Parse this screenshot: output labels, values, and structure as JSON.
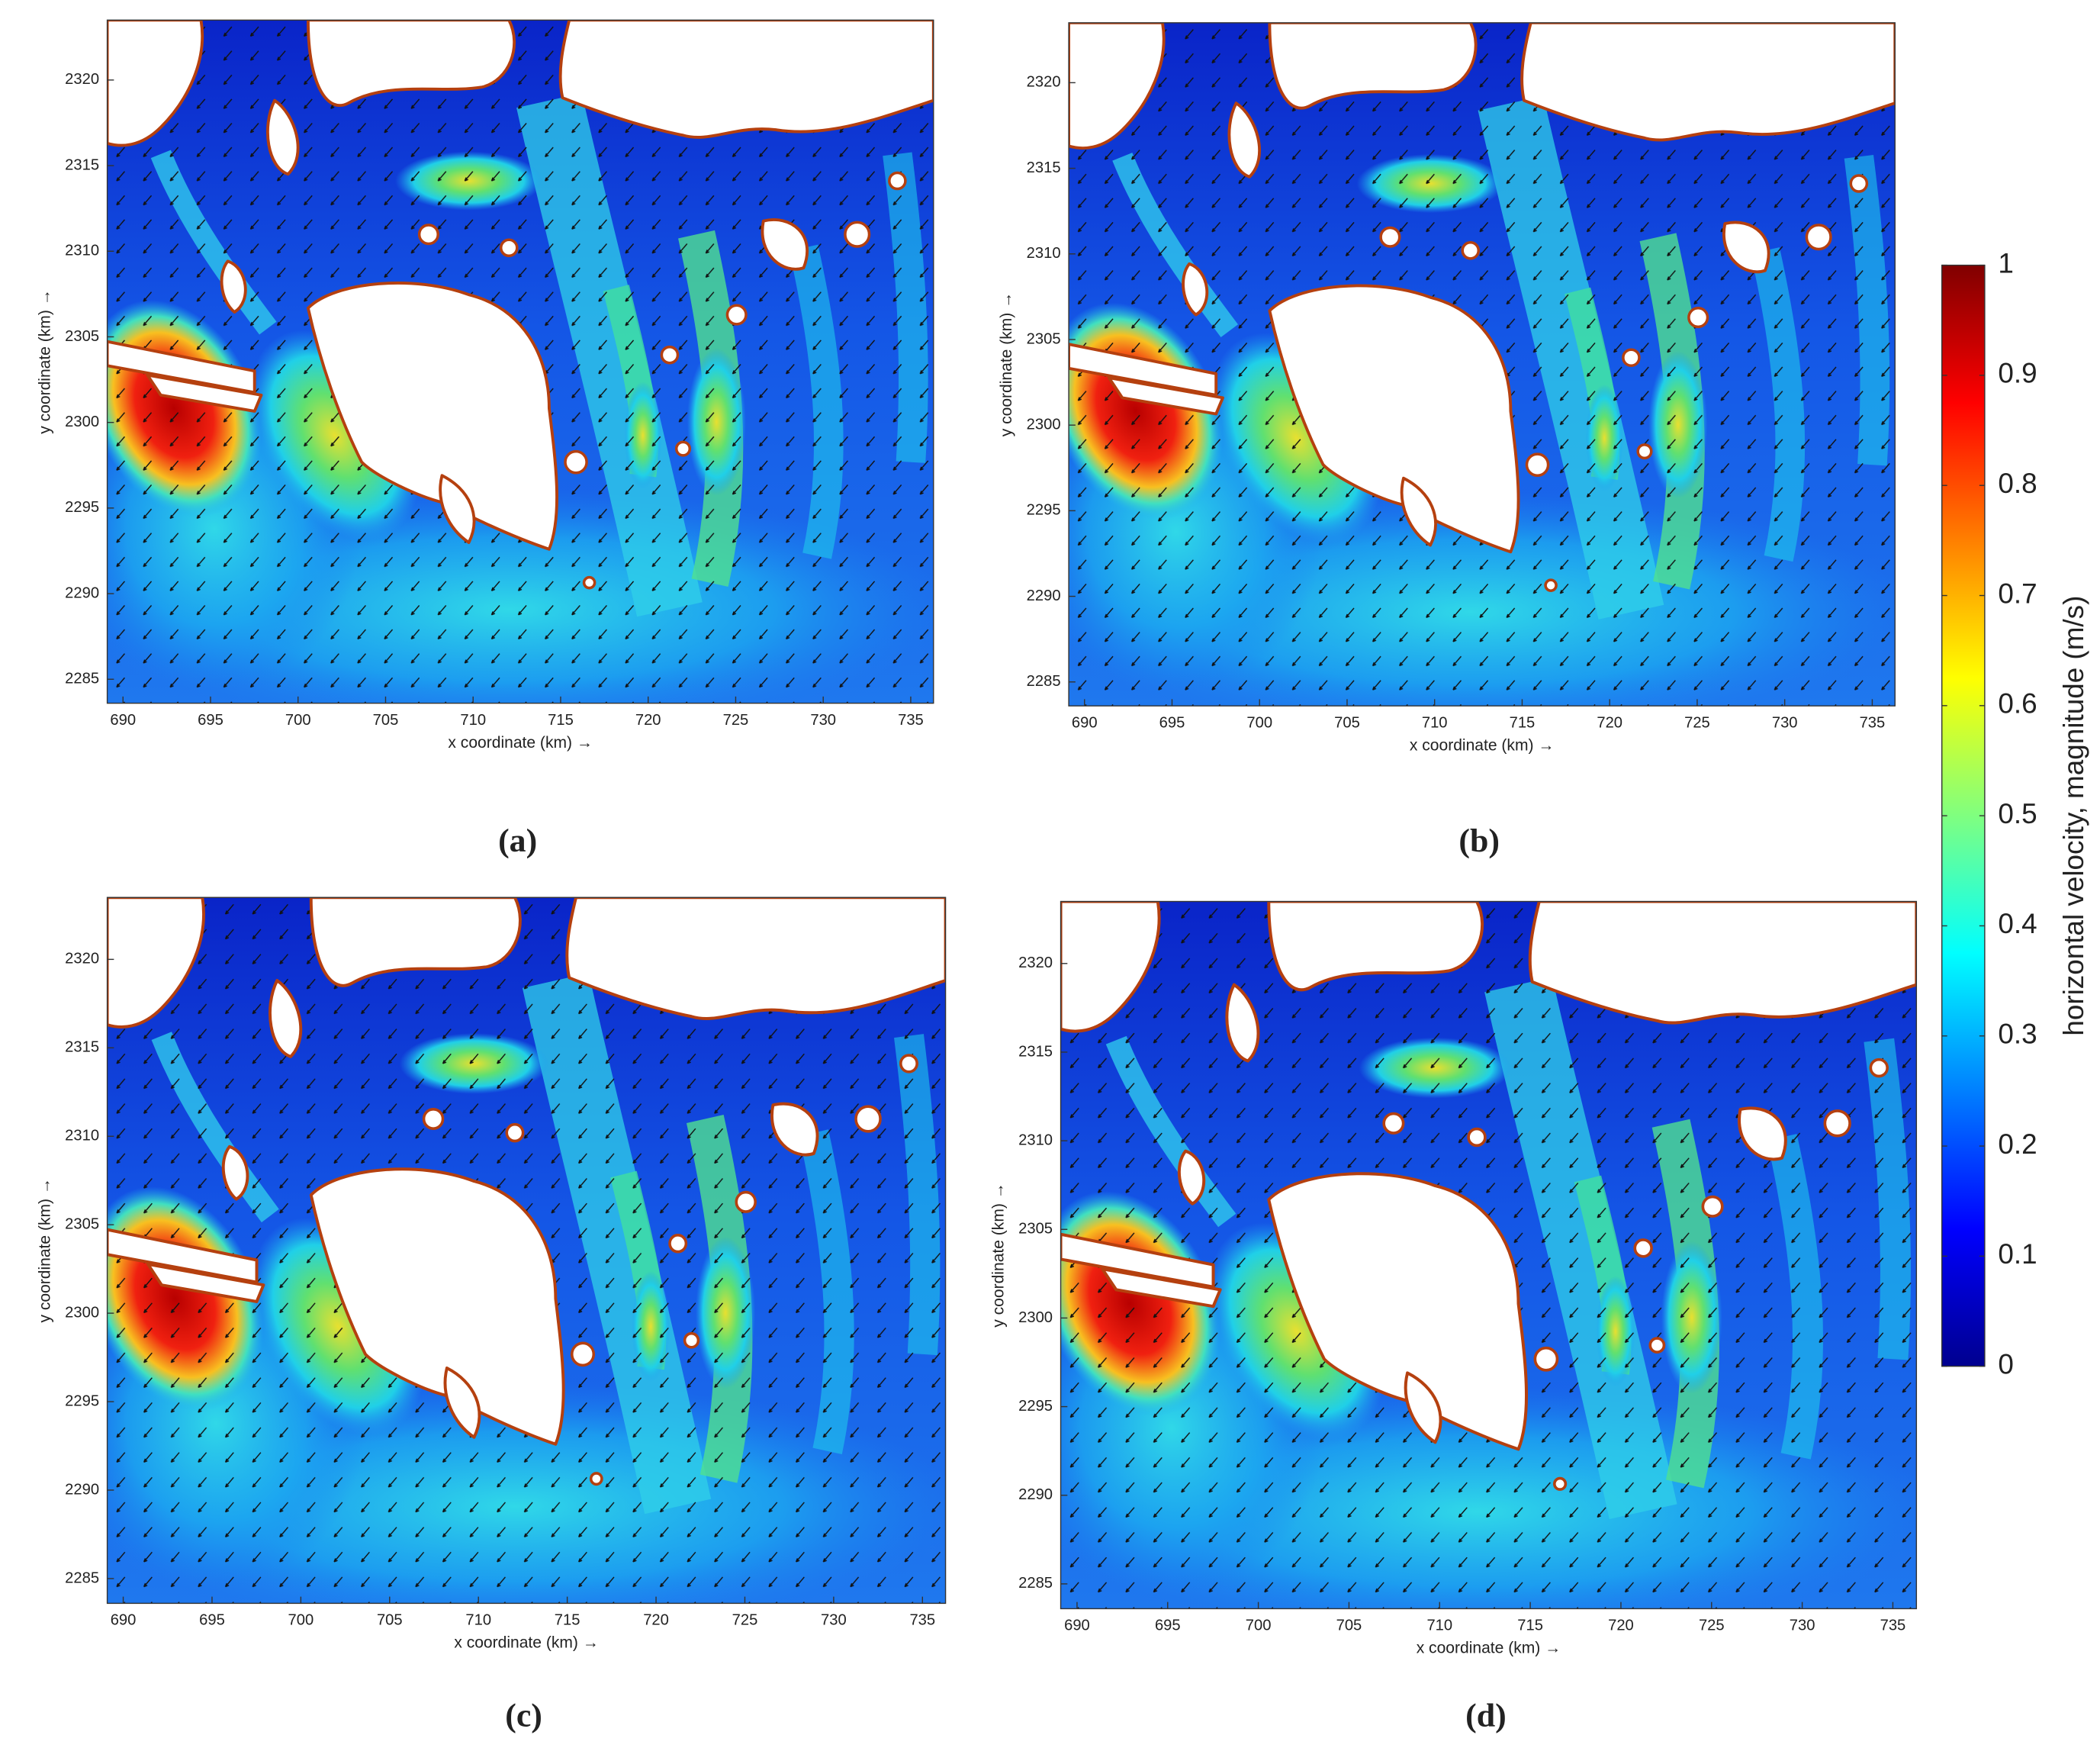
{
  "chart_data": [
    {
      "type": "map",
      "caption": "(a)",
      "xlabel": "x coordinate (km) →",
      "ylabel": "y coordinate (km) →",
      "xlim": [
        689.1,
        736.3
      ],
      "ylim": [
        2283.6,
        2323.5
      ],
      "xticks": [
        690,
        695,
        700,
        705,
        710,
        715,
        720,
        725,
        730,
        735
      ],
      "yticks": [
        2285,
        2290,
        2295,
        2300,
        2305,
        2310,
        2315,
        2320
      ]
    },
    {
      "type": "map",
      "caption": "(b)",
      "xlabel": "x coordinate (km) →",
      "ylabel": "y coordinate (km) →",
      "xlim": [
        689.1,
        736.3
      ],
      "ylim": [
        2283.6,
        2323.5
      ],
      "xticks": [
        690,
        695,
        700,
        705,
        710,
        715,
        720,
        725,
        730,
        735
      ],
      "yticks": [
        2285,
        2290,
        2295,
        2300,
        2305,
        2310,
        2315,
        2320
      ]
    },
    {
      "type": "map",
      "caption": "(c)",
      "xlabel": "x coordinate (km) →",
      "ylabel": "y coordinate (km) →",
      "xlim": [
        689.1,
        736.3
      ],
      "ylim": [
        2283.6,
        2323.5
      ],
      "xticks": [
        690,
        695,
        700,
        705,
        710,
        715,
        720,
        725,
        730,
        735
      ],
      "yticks": [
        2285,
        2290,
        2295,
        2300,
        2305,
        2310,
        2315,
        2320
      ]
    },
    {
      "type": "map",
      "caption": "(d)",
      "xlabel": "x coordinate (km) →",
      "ylabel": "y coordinate (km) →",
      "xlim": [
        689.1,
        736.3
      ],
      "ylim": [
        2283.6,
        2323.5
      ],
      "xticks": [
        690,
        695,
        700,
        705,
        710,
        715,
        720,
        725,
        730,
        735
      ],
      "yticks": [
        2285,
        2290,
        2295,
        2300,
        2305,
        2310,
        2315,
        2320
      ]
    },
    {
      "type": "colorbar",
      "label": "horizontal velocity, magnitude (m/s)",
      "colormap": "jet",
      "ylim": [
        0,
        1
      ],
      "yticks": [
        0,
        0.1,
        0.2,
        0.3,
        0.4,
        0.5,
        0.6,
        0.7,
        0.8,
        0.9,
        1
      ]
    }
  ]
}
